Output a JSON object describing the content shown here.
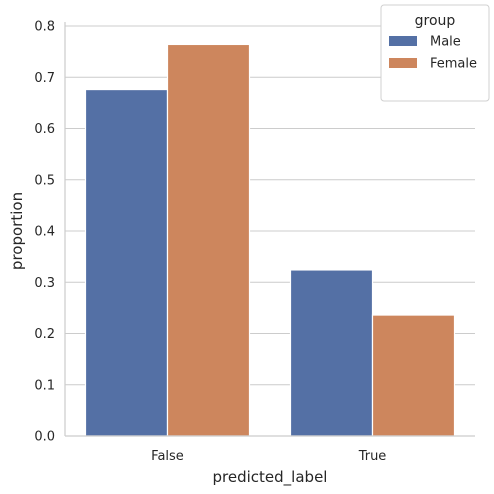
{
  "chart_data": {
    "type": "bar",
    "categories": [
      "False",
      "True"
    ],
    "series": [
      {
        "name": "Male",
        "values": [
          0.676,
          0.324
        ],
        "color": "#5470a5"
      },
      {
        "name": "Female",
        "values": [
          0.764,
          0.236
        ],
        "color": "#cd865d"
      }
    ],
    "xlabel": "predicted_label",
    "ylabel": "proportion",
    "ylim": [
      0,
      0.8
    ],
    "yticks": [
      "0.0",
      "0.1",
      "0.2",
      "0.3",
      "0.4",
      "0.5",
      "0.6",
      "0.7",
      "0.8"
    ],
    "grid": "horizontal",
    "legend": {
      "title": "group",
      "placement": "top-right"
    }
  }
}
